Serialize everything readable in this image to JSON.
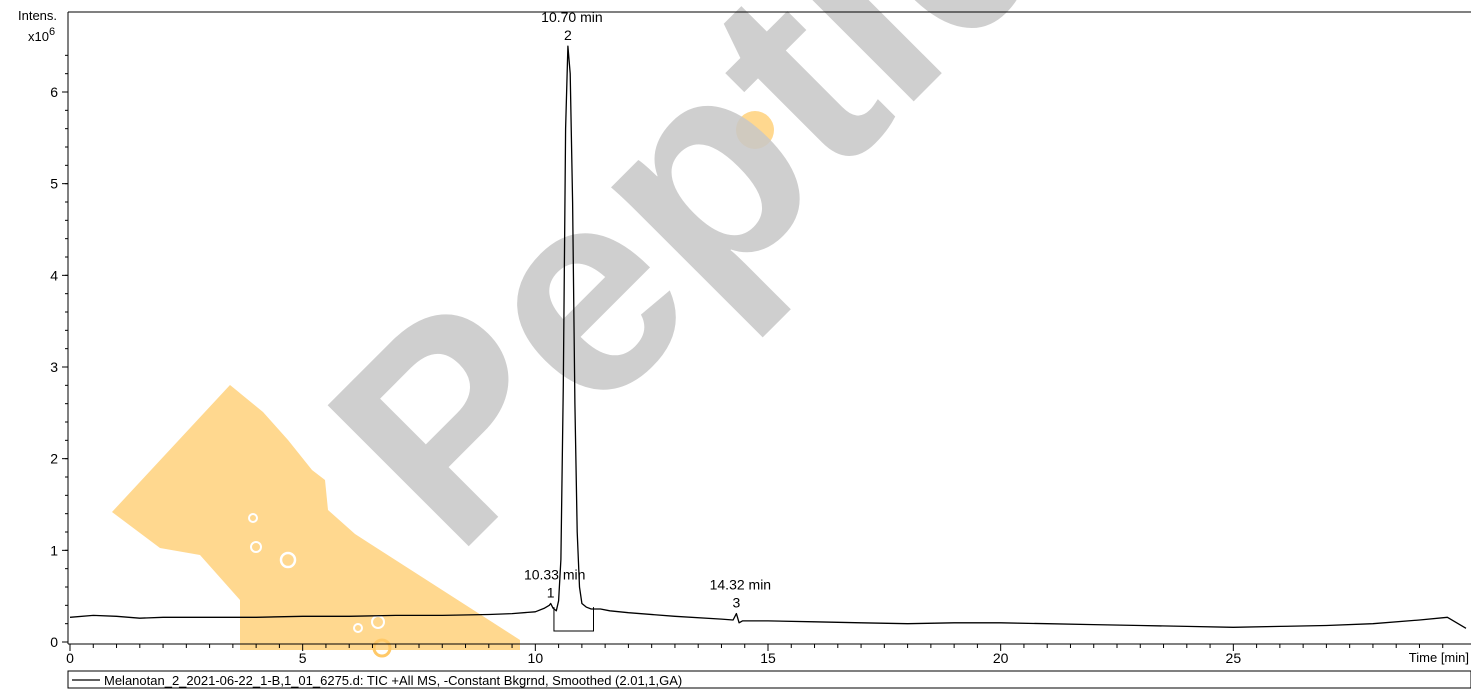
{
  "chart_data": {
    "type": "line",
    "ylabel": "Intens.",
    "yscale_label": "x10",
    "yscale_exp": "6",
    "xlabel": "Time [min]",
    "xlim": [
      0,
      30
    ],
    "ylim": [
      0,
      6.5
    ],
    "xticks": [
      0,
      5,
      10,
      15,
      20,
      25
    ],
    "yticks": [
      0,
      1,
      2,
      3,
      4,
      5,
      6
    ],
    "series": [
      {
        "name": "Melanotan_2_2021-06-22_1-B,1_01_6275.d: TIC +All MS, -Constant Bkgrnd, Smoothed (2.01,1,GA)",
        "x": [
          0,
          0.5,
          1,
          1.5,
          2,
          3,
          4,
          5,
          6,
          7,
          8,
          9,
          9.5,
          10.0,
          10.2,
          10.3,
          10.33,
          10.38,
          10.45,
          10.5,
          10.55,
          10.6,
          10.65,
          10.7,
          10.75,
          10.8,
          10.85,
          10.9,
          10.95,
          11.0,
          11.1,
          11.2,
          11.4,
          11.6,
          12,
          13,
          14,
          14.25,
          14.32,
          14.38,
          14.45,
          15,
          16,
          17,
          18,
          19,
          20,
          21,
          22,
          23,
          24,
          25,
          26,
          27,
          28,
          29,
          29.6,
          30
        ],
        "y": [
          0.27,
          0.29,
          0.28,
          0.26,
          0.27,
          0.27,
          0.27,
          0.28,
          0.28,
          0.29,
          0.29,
          0.3,
          0.31,
          0.33,
          0.37,
          0.4,
          0.42,
          0.37,
          0.34,
          0.45,
          0.9,
          2.8,
          5.6,
          6.5,
          6.2,
          4.8,
          2.6,
          1.2,
          0.6,
          0.42,
          0.38,
          0.36,
          0.36,
          0.34,
          0.32,
          0.28,
          0.25,
          0.24,
          0.31,
          0.21,
          0.23,
          0.23,
          0.22,
          0.21,
          0.2,
          0.21,
          0.21,
          0.2,
          0.19,
          0.18,
          0.17,
          0.16,
          0.17,
          0.18,
          0.2,
          0.24,
          0.27,
          0.15
        ]
      }
    ],
    "peaks": [
      {
        "number": "1",
        "label": "10.33 min",
        "x": 10.33,
        "y": 0.42
      },
      {
        "number": "2",
        "label": "10.70 min",
        "x": 10.7,
        "y": 6.5
      },
      {
        "number": "3",
        "label": "14.32 min",
        "x": 14.32,
        "y": 0.31
      }
    ],
    "integration_box": {
      "x_start": 10.4,
      "x_end": 11.25,
      "y_level": 0.38
    },
    "legend_position": "bottom"
  },
  "watermark": {
    "text": "Peptide",
    "text_color": "#bdbdbd",
    "accent_color": "#ffc04d",
    "icon": "vial-icon"
  },
  "colors": {
    "axis": "#000000",
    "trace": "#000000",
    "background": "#ffffff"
  }
}
